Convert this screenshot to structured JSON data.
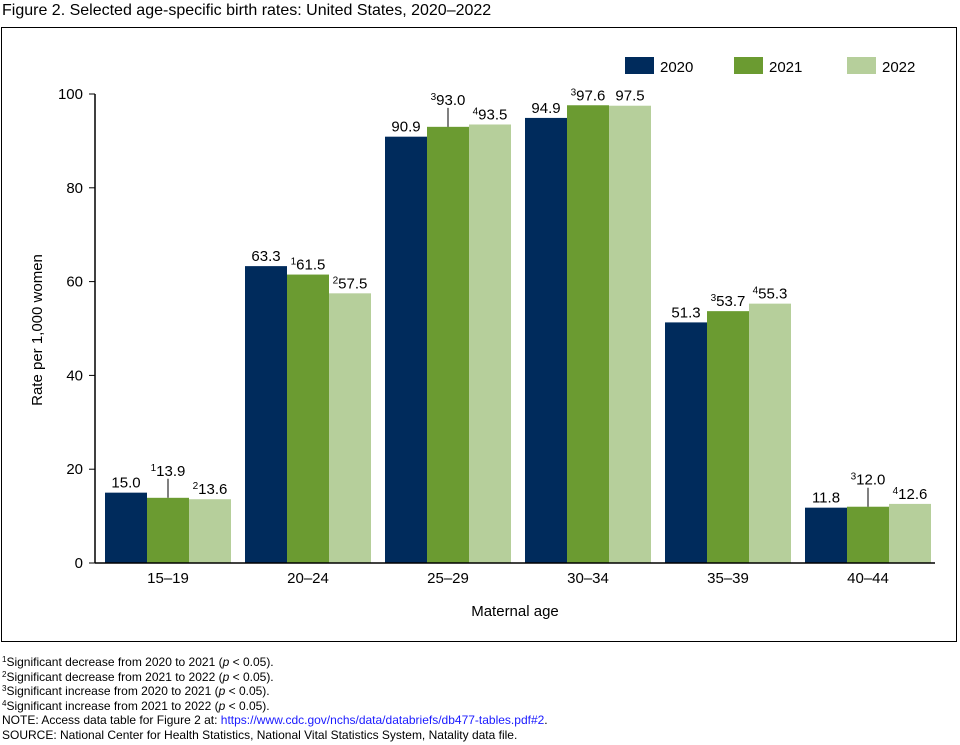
{
  "title": "Figure 2. Selected age-specific birth rates: United States, 2020–2022",
  "chart_data": {
    "type": "bar",
    "categories": [
      "15–19",
      "20–24",
      "25–29",
      "30–34",
      "35–39",
      "40–44"
    ],
    "xlabel": "Maternal age",
    "ylabel": "Rate per 1,000 women",
    "ylim": [
      0,
      100
    ],
    "yticks": [
      0,
      20,
      40,
      60,
      80,
      100
    ],
    "grid": false,
    "legend": "top-right",
    "series": [
      {
        "name": "2020",
        "color": "#002b5c",
        "values": [
          15.0,
          63.3,
          90.9,
          94.9,
          51.3,
          11.8
        ],
        "labels": [
          "15.0",
          "63.3",
          "90.9",
          "94.9",
          "51.3",
          "11.8"
        ],
        "superscripts": [
          "",
          "",
          "",
          "",
          "",
          ""
        ]
      },
      {
        "name": "2021",
        "color": "#6b9b31",
        "values": [
          13.9,
          61.5,
          93.0,
          97.6,
          53.7,
          12.0
        ],
        "labels": [
          "13.9",
          "61.5",
          "93.0",
          "97.6",
          "53.7",
          "12.0"
        ],
        "superscripts": [
          "1",
          "1",
          "3",
          "3",
          "3",
          "3"
        ]
      },
      {
        "name": "2022",
        "color": "#b6cf9b",
        "values": [
          13.6,
          57.5,
          93.5,
          97.5,
          55.3,
          12.6
        ],
        "labels": [
          "13.6",
          "57.5",
          "93.5",
          "97.5",
          "55.3",
          "12.6"
        ],
        "superscripts": [
          "2",
          "2",
          "4",
          "",
          "4",
          "4"
        ]
      }
    ]
  },
  "notes": [
    {
      "sup": "1",
      "text": "Significant decrease from 2020 to 2021 (",
      "p": "p",
      "tail": " < 0.05)."
    },
    {
      "sup": "2",
      "text": "Significant decrease from 2021 to 2022 (",
      "p": "p",
      "tail": " < 0.05)."
    },
    {
      "sup": "3",
      "text": "Significant increase from 2020 to 2021 (",
      "p": "p",
      "tail": " < 0.05)."
    },
    {
      "sup": "4",
      "text": "Significant increase from 2021 to 2022 (",
      "p": "p",
      "tail": " < 0.05)."
    }
  ],
  "note_prefix": "NOTE: Access data table for Figure 2 at: ",
  "note_link": "https://www.cdc.gov/nchs/data/databriefs/db477-tables.pdf#2",
  "note_suffix": ".",
  "source": "SOURCE: National Center for Health Statistics, National Vital Statistics System, Natality data file."
}
